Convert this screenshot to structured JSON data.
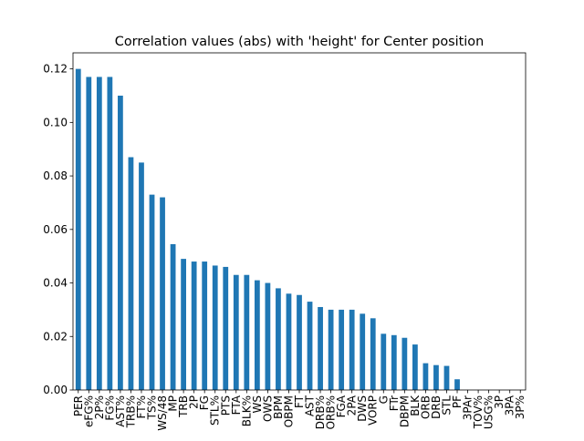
{
  "chart_data": {
    "type": "bar",
    "title": "Correlation values (abs) with 'height' for Center position",
    "xlabel": "",
    "ylabel": "",
    "ylim": [
      0,
      0.126
    ],
    "yticks": [
      0.0,
      0.02,
      0.04,
      0.06,
      0.08,
      0.1,
      0.12
    ],
    "ytick_labels": [
      "0.00",
      "0.02",
      "0.04",
      "0.06",
      "0.08",
      "0.10",
      "0.12"
    ],
    "bar_color": "#1f77b4",
    "grid": false,
    "legend": "none",
    "categories": [
      "PER",
      "eFG%",
      "2P%",
      "FG%",
      "AST%",
      "TRB%",
      "FT%",
      "TS%",
      "WS/48",
      "MP",
      "TRB",
      "2P",
      "FG",
      "STL%",
      "PTS",
      "FTA",
      "BLK%",
      "WS",
      "OWS",
      "BPM",
      "OBPM",
      "FT",
      "AST",
      "DRB%",
      "ORB%",
      "FGA",
      "2PA",
      "DWS",
      "VORP",
      "G",
      "FTr",
      "DBPM",
      "BLK",
      "ORB",
      "DRB",
      "STL",
      "PF",
      "3PAr",
      "TOV%",
      "USG%",
      "3P",
      "3PA",
      "3P%"
    ],
    "values": [
      0.12,
      0.117,
      0.117,
      0.117,
      0.11,
      0.087,
      0.085,
      0.073,
      0.072,
      0.0545,
      0.049,
      0.048,
      0.048,
      0.0465,
      0.046,
      0.043,
      0.043,
      0.041,
      0.04,
      0.038,
      0.036,
      0.0355,
      0.033,
      0.031,
      0.03,
      0.03,
      0.03,
      0.0285,
      0.0268,
      0.021,
      0.0205,
      0.0195,
      0.017,
      0.01,
      0.0093,
      0.009,
      0.004,
      0,
      0,
      0,
      0,
      0,
      0
    ]
  }
}
